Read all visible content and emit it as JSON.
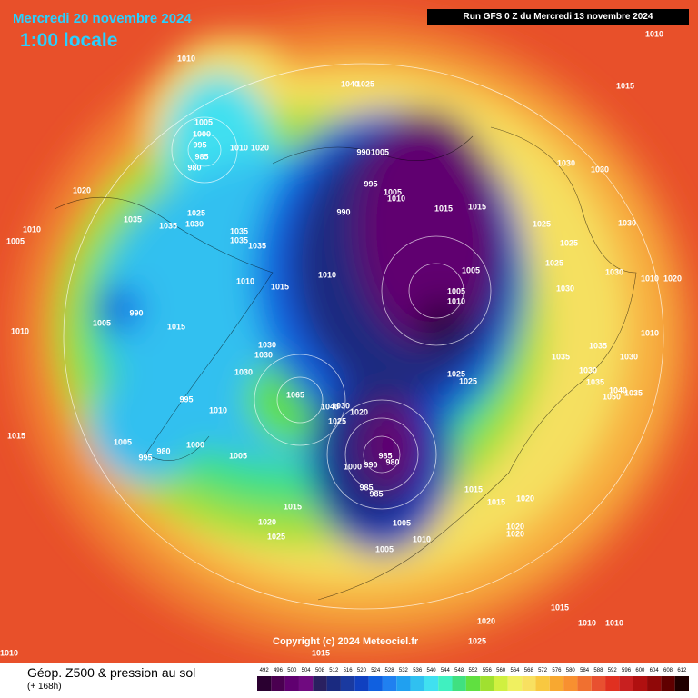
{
  "header": {
    "date": "Mercredi 20 novembre 2024",
    "local_time": "1:00 locale",
    "run": "Run GFS 0 Z du Mercredi 13 novembre 2024"
  },
  "copyright": "Copyright (c) 2024 Meteociel.fr",
  "legend": {
    "title": "Géop. Z500 & pression au sol",
    "subtitle": "(+ 168h)",
    "levels": [
      "492",
      "496",
      "500",
      "504",
      "508",
      "512",
      "516",
      "520",
      "524",
      "528",
      "532",
      "536",
      "540",
      "544",
      "548",
      "552",
      "556",
      "560",
      "564",
      "568",
      "572",
      "576",
      "580",
      "584",
      "588",
      "592",
      "596",
      "600",
      "604",
      "608",
      "612"
    ],
    "colors": [
      "#2a0030",
      "#4a0050",
      "#600070",
      "#700a80",
      "#2a2060",
      "#1a2a80",
      "#1a3aa0",
      "#1040c0",
      "#1060e0",
      "#2080f0",
      "#20a0f0",
      "#30c0f0",
      "#40e0f0",
      "#40f0c0",
      "#40e080",
      "#60e040",
      "#a0e030",
      "#d0f040",
      "#f0f060",
      "#f8e060",
      "#f8c840",
      "#f8a830",
      "#f89030",
      "#f07030",
      "#e85030",
      "#e03020",
      "#c82020",
      "#b01010",
      "#900808",
      "#600000",
      "#200000"
    ]
  },
  "isobar_labels": [
    "1010",
    "1010",
    "1040",
    "1025",
    "1015",
    "1005",
    "1000",
    "995",
    "985",
    "980",
    "1010",
    "1020",
    "990",
    "1005",
    "1030",
    "1030",
    "995",
    "1005",
    "1010",
    "1020",
    "1035",
    "1035",
    "1025",
    "1030",
    "990",
    "1015",
    "1015",
    "1010",
    "1005",
    "1035",
    "1035",
    "1035",
    "1025",
    "1030",
    "1025",
    "1025",
    "1030",
    "1010",
    "1020",
    "1010",
    "1015",
    "1010",
    "1005",
    "1005",
    "1010",
    "1030",
    "1005",
    "990",
    "1015",
    "1010",
    "1010",
    "1030",
    "1030",
    "1035",
    "1030",
    "1035",
    "1030",
    "1025",
    "1025",
    "1030",
    "1035",
    "1040",
    "1050",
    "1035",
    "1065",
    "1040",
    "1030",
    "1025",
    "1020",
    "995",
    "1010",
    "1015",
    "1005",
    "1000",
    "1005",
    "985",
    "980",
    "990",
    "1000",
    "995",
    "980",
    "985",
    "985",
    "1015",
    "1015",
    "1020",
    "1015",
    "1020",
    "1025",
    "1005",
    "1005",
    "1010",
    "1020",
    "1020",
    "1015",
    "1010",
    "1010",
    "1020",
    "1025",
    "1015",
    "1010"
  ]
}
